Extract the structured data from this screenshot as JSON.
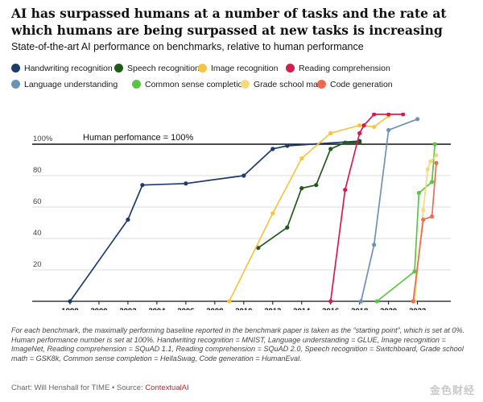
{
  "title": "AI has surpassed humans at a number of tasks and the rate at which humans are being surpassed at new tasks is increasing",
  "subtitle": "State-of-the-art AI performance on benchmarks, relative to human performance",
  "footnote": "For each benchmark, the maximally performing baseline reported in the benchmark paper is taken as the “starting point”, which is set at 0%. Human performance number is set at 100%. Handwriting recognition = MNIST, Language understanding = GLUE, Image recognition = ImageNet, Reading comprehension = SQuAD 1.1, Reading comprehension = SQuAD 2.0, Speech recognition = Switchboard, Grade school math = GSK8k, Common sense completion = HellaSwag, Code generation = HumanEval.",
  "credit": {
    "prefix": "Chart: Will Henshall for TIME • Source: ",
    "source": "ContextualAI"
  },
  "watermark": "金色财经",
  "chart_data": {
    "type": "line",
    "xlim": [
      1996.5,
      2024.3
    ],
    "ylim": [
      0,
      120
    ],
    "yticks": [
      20,
      40,
      60,
      80,
      100
    ],
    "ytick_labels": [
      "20",
      "40",
      "60",
      "80",
      "100%"
    ],
    "xticks": [
      1998,
      2000,
      2002,
      2004,
      2006,
      2008,
      2010,
      2012,
      2014,
      2016,
      2018,
      2020,
      2022
    ],
    "reference_line": {
      "y": 100,
      "label": "Human perfomance = 100%"
    },
    "series": [
      {
        "name": "Handwriting recognition",
        "color": "#1c3b6e",
        "x": [
          1998,
          2002,
          2003,
          2006,
          2010,
          2012,
          2013,
          2018
        ],
        "y": [
          0,
          52,
          74,
          75,
          80,
          97,
          99,
          102
        ]
      },
      {
        "name": "Speech recognition",
        "color": "#1f5c1a",
        "x": [
          2011,
          2013,
          2014,
          2015,
          2016,
          2017,
          2018
        ],
        "y": [
          34,
          47,
          72,
          74,
          97,
          101,
          101
        ]
      },
      {
        "name": "Image recognition",
        "color": "#f5c542",
        "x": [
          2009,
          2012,
          2014,
          2016,
          2018,
          2019,
          2020
        ],
        "y": [
          0,
          56,
          91,
          107,
          112,
          111,
          118
        ]
      },
      {
        "name": "Reading comprehension",
        "color": "#d81b4f",
        "x": [
          2016,
          2017,
          2018,
          2018.3,
          2019,
          2020,
          2021
        ],
        "y": [
          0,
          71,
          107,
          112,
          119,
          119,
          119
        ]
      },
      {
        "name": "Language understanding",
        "color": "#6b93b8",
        "x": [
          2018.1,
          2019,
          2020,
          2022
        ],
        "y": [
          0,
          36,
          109,
          116
        ]
      },
      {
        "name": "Common sense completion",
        "color": "#5cc443",
        "x": [
          2019.2,
          2021.8,
          2022.1,
          2023,
          2023.2
        ],
        "y": [
          0,
          19,
          69,
          76,
          100
        ]
      },
      {
        "name": "Grade school math",
        "color": "#f2dc7a",
        "x": [
          2021.8,
          2022.4,
          2022.7,
          2022.9,
          2023.3
        ],
        "y": [
          0,
          58,
          84,
          89,
          93
        ]
      },
      {
        "name": "Code generation",
        "color": "#f06b4f",
        "x": [
          2021.7,
          2022.4,
          2023,
          2023.3
        ],
        "y": [
          0,
          52,
          54,
          88
        ]
      }
    ]
  }
}
